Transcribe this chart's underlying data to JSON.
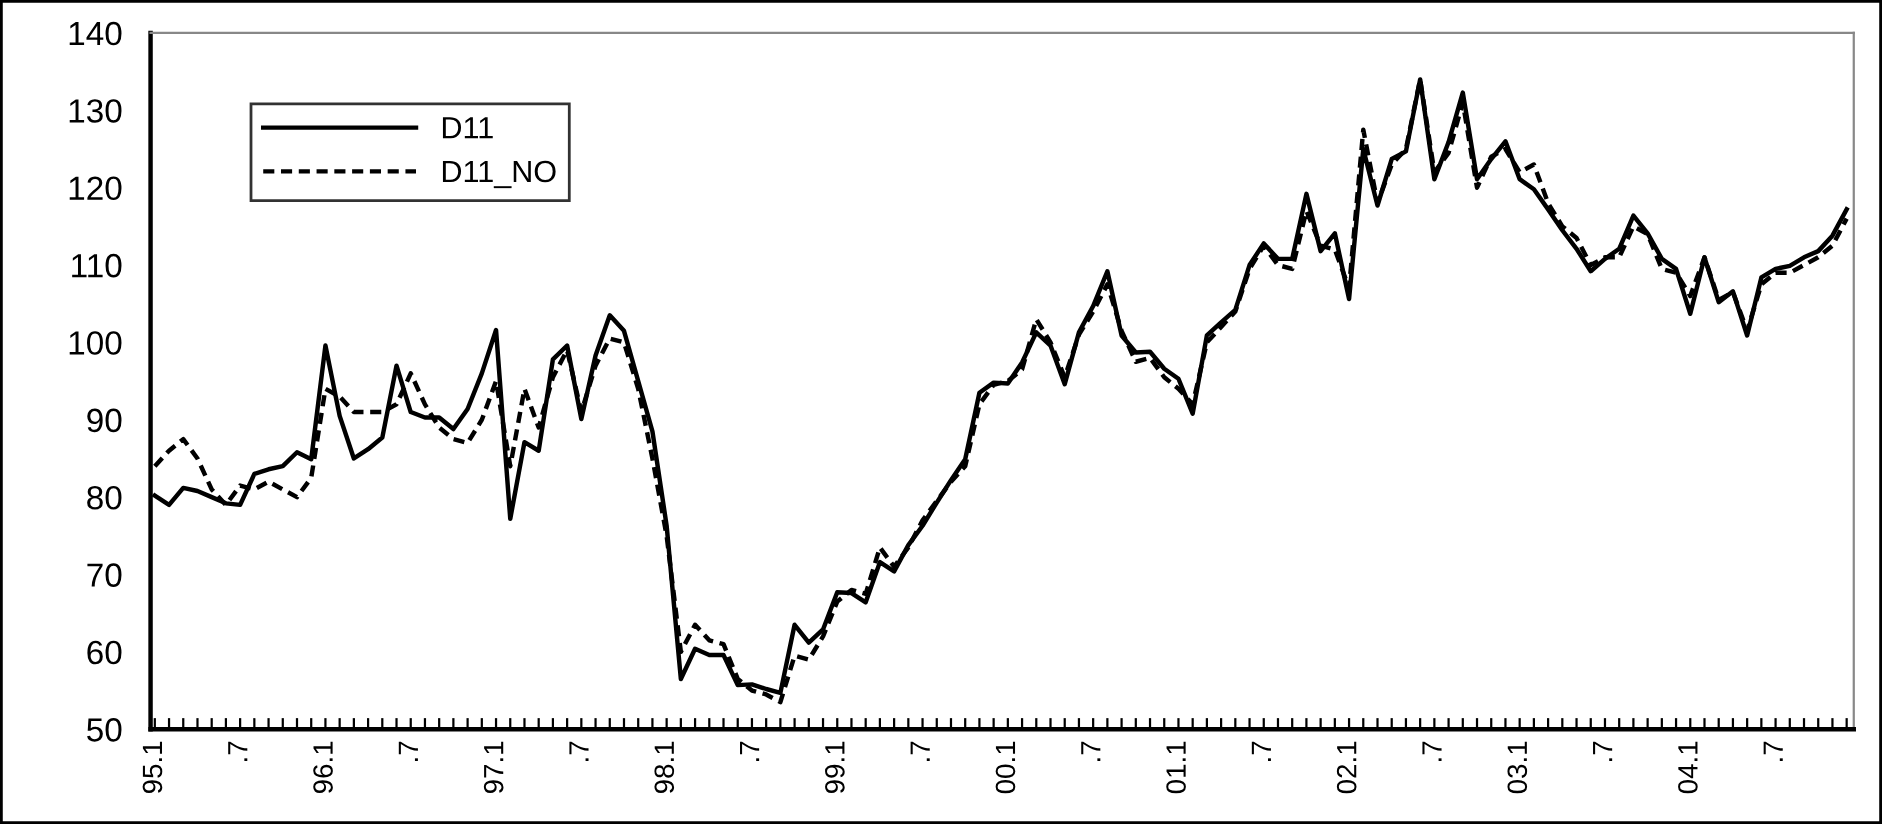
{
  "chart_data": {
    "type": "line",
    "categories": [
      "95.1",
      null,
      null,
      null,
      null,
      null,
      ".7",
      null,
      null,
      null,
      null,
      null,
      "96.1",
      null,
      null,
      null,
      null,
      null,
      ".7",
      null,
      null,
      null,
      null,
      null,
      "97.1",
      null,
      null,
      null,
      null,
      null,
      ".7",
      null,
      null,
      null,
      null,
      null,
      "98.1",
      null,
      null,
      null,
      null,
      null,
      ".7",
      null,
      null,
      null,
      null,
      null,
      "99.1",
      null,
      null,
      null,
      null,
      null,
      ".7",
      null,
      null,
      null,
      null,
      null,
      "00.1",
      null,
      null,
      null,
      null,
      null,
      ".7",
      null,
      null,
      null,
      null,
      null,
      "01.1",
      null,
      null,
      null,
      null,
      null,
      ".7",
      null,
      null,
      null,
      null,
      null,
      "02.1",
      null,
      null,
      null,
      null,
      null,
      ".7",
      null,
      null,
      null,
      null,
      null,
      "03.1",
      null,
      null,
      null,
      null,
      null,
      ".7",
      null,
      null,
      null,
      null,
      null,
      "04.1",
      null,
      null,
      null,
      null,
      null,
      ".7",
      null,
      null,
      null,
      null,
      null
    ],
    "series": [
      {
        "name": "D11",
        "color": "#000000",
        "line_style": "solid",
        "values": [
          80.2,
          79.0,
          81.2,
          80.8,
          80.0,
          79.2,
          79.0,
          83.0,
          83.6,
          84.0,
          85.8,
          84.9,
          99.6,
          90.5,
          85.0,
          86.2,
          87.7,
          97.0,
          91.0,
          90.3,
          90.3,
          88.8,
          91.4,
          96.0,
          101.6,
          77.2,
          87.1,
          86.0,
          97.8,
          99.6,
          90.1,
          98.3,
          103.5,
          101.5,
          95.0,
          88.5,
          76.3,
          56.5,
          60.4,
          59.6,
          59.6,
          55.7,
          55.8,
          55.2,
          54.7,
          63.5,
          61.2,
          62.9,
          67.7,
          67.6,
          66.4,
          71.6,
          70.4,
          73.8,
          76.3,
          79.3,
          82.2,
          84.9,
          93.5,
          94.8,
          94.7,
          97.4,
          101.3,
          99.6,
          94.6,
          101.3,
          104.7,
          109.2,
          100.9,
          98.7,
          98.8,
          96.6,
          95.3,
          90.8,
          100.9,
          102.6,
          104.2,
          110.0,
          112.8,
          110.8,
          110.8,
          119.2,
          111.8,
          114.1,
          105.6,
          125.0,
          117.7,
          123.7,
          124.7,
          134.0,
          121.1,
          125.9,
          132.3,
          121.1,
          123.7,
          126.0,
          121.1,
          119.8,
          117.2,
          114.5,
          112.1,
          109.2,
          110.8,
          112.1,
          116.4,
          114.1,
          110.8,
          109.5,
          103.7,
          111.0,
          105.2,
          106.6,
          100.9,
          108.4,
          109.5,
          109.9,
          111.0,
          111.8,
          113.8,
          117.2
        ]
      },
      {
        "name": "D11_NO",
        "color": "#000000",
        "line_style": "dashed",
        "values": [
          84.0,
          86.0,
          87.5,
          85.0,
          81.0,
          79.0,
          81.5,
          81.0,
          82.0,
          81.0,
          80.0,
          82.5,
          94.0,
          93.0,
          91.0,
          91.0,
          91.0,
          92.0,
          96.0,
          92.0,
          89.0,
          87.5,
          87.0,
          90.0,
          95.0,
          84.0,
          94.0,
          89.0,
          95.5,
          99.0,
          91.0,
          97.0,
          100.5,
          100.0,
          94.0,
          85.0,
          75.0,
          60.0,
          63.5,
          61.5,
          61.0,
          56.5,
          55.0,
          54.5,
          53.5,
          59.5,
          59.0,
          62.0,
          66.5,
          68.0,
          67.5,
          73.5,
          71.0,
          73.5,
          77.0,
          79.5,
          82.0,
          84.0,
          92.0,
          94.5,
          95.0,
          96.5,
          103.0,
          100.0,
          95.5,
          101.0,
          104.0,
          107.5,
          101.5,
          97.5,
          98.0,
          95.5,
          94.0,
          92.0,
          100.0,
          102.0,
          104.0,
          109.5,
          112.5,
          110.0,
          109.5,
          117.0,
          112.5,
          112.0,
          107.0,
          127.5,
          118.0,
          123.0,
          125.0,
          134.0,
          122.0,
          124.5,
          131.0,
          120.0,
          124.0,
          125.0,
          122.0,
          123.0,
          118.0,
          115.0,
          113.5,
          110.0,
          111.0,
          111.0,
          115.0,
          114.0,
          109.5,
          109.0,
          106.0,
          111.0,
          105.5,
          106.5,
          101.5,
          107.5,
          109.0,
          109.0,
          110.0,
          111.0,
          112.5,
          116.0
        ]
      }
    ],
    "ylim": [
      50,
      140
    ],
    "yticks": [
      50,
      60,
      70,
      80,
      90,
      100,
      110,
      120,
      130,
      140
    ],
    "grid": false,
    "legend": "top left"
  }
}
